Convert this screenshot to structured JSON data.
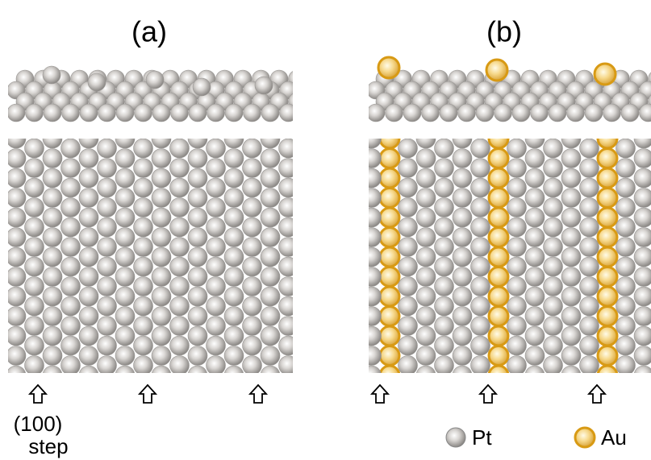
{
  "panels": [
    {
      "label": "(a)"
    },
    {
      "label": "(b)"
    }
  ],
  "annotation": {
    "line1": "(100)",
    "line2": "step"
  },
  "legend": [
    {
      "label": "Pt"
    },
    {
      "label": "Au"
    }
  ]
}
